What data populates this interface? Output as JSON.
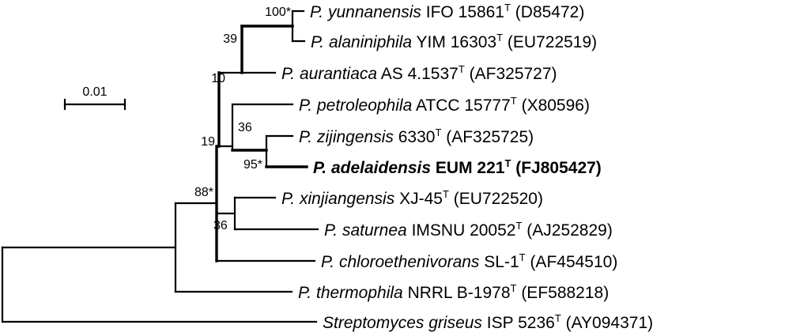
{
  "tree": {
    "leaves": [
      {
        "id": "yunnanensis",
        "genus": "P.",
        "species": "yunnanensis",
        "strain": "IFO 15861",
        "type_mark": "T",
        "accession": "(D85472)",
        "bold": false
      },
      {
        "id": "alaniniphila",
        "genus": "P.",
        "species": "alaniniphila",
        "strain": "YIM 16303",
        "type_mark": "T",
        "accession": "(EU722519)",
        "bold": false
      },
      {
        "id": "aurantiaca",
        "genus": "P.",
        "species": "aurantiaca",
        "strain": "AS 4.1537",
        "type_mark": "T",
        "accession": "(AF325727)",
        "bold": false
      },
      {
        "id": "petroleophila",
        "genus": "P.",
        "species": "petroleophila",
        "strain": "ATCC 15777",
        "type_mark": "T",
        "accession": "(X80596)",
        "bold": false
      },
      {
        "id": "zijingensis",
        "genus": "P.",
        "species": "zijingensis",
        "strain": "6330",
        "type_mark": "T",
        "accession": "(AF325725)",
        "bold": false
      },
      {
        "id": "adelaidensis",
        "genus": "P.",
        "species": "adelaidensis",
        "strain": "EUM 221",
        "type_mark": "T",
        "accession": "(FJ805427)",
        "bold": true
      },
      {
        "id": "xinjiangensis",
        "genus": "P.",
        "species": "xinjiangensis",
        "strain": "XJ-45",
        "type_mark": "T",
        "accession": "(EU722520)",
        "bold": false
      },
      {
        "id": "saturnea",
        "genus": "P.",
        "species": "saturnea",
        "strain": "IMSNU 20052",
        "type_mark": "T",
        "accession": "(AJ252829)",
        "bold": false
      },
      {
        "id": "chloroethenivorans",
        "genus": "P.",
        "species": "chloroethenivorans",
        "strain": "SL-1",
        "type_mark": "T",
        "accession": "(AF454510)",
        "bold": false
      },
      {
        "id": "thermophila",
        "genus": "P.",
        "species": "thermophila",
        "strain": "NRRL B-1978",
        "type_mark": "T",
        "accession": "(EF588218)",
        "bold": false
      },
      {
        "id": "griseus",
        "genus": "Streptomyces",
        "species": "griseus",
        "strain": "ISP 5236",
        "type_mark": "T",
        "accession": "(AY094371)",
        "bold": false
      }
    ],
    "bootstrap": {
      "yunnanensis_alaniniphila": "100*",
      "with_aurantiaca": "39",
      "yunnanensis_group": "10",
      "petroleophila_group": "36",
      "zijingensis_adelaidensis": "95*",
      "upper_clade": "19",
      "xinjiangensis_saturnea": "36",
      "inner_clade": "88*"
    },
    "scale_bar": {
      "label": "0.01"
    }
  }
}
